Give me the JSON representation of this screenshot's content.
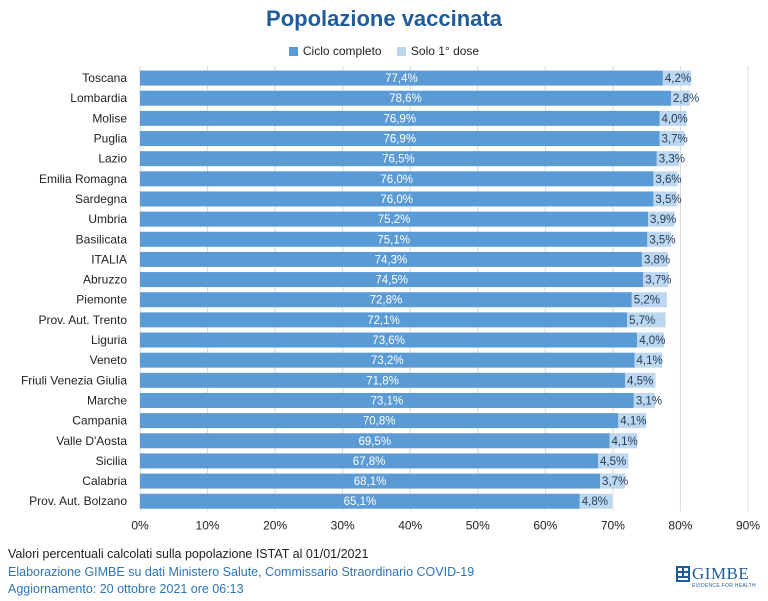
{
  "chart_data": {
    "type": "bar",
    "orientation": "horizontal",
    "stacked": true,
    "title": "Popolazione vaccinata",
    "xlim": [
      0,
      90
    ],
    "x_ticks": [
      "0%",
      "10%",
      "20%",
      "30%",
      "40%",
      "50%",
      "60%",
      "70%",
      "80%",
      "90%"
    ],
    "grid": "vertical",
    "legend_position": "top",
    "categories": [
      "Toscana",
      "Lombardia",
      "Molise",
      "Puglia",
      "Lazio",
      "Emilia Romagna",
      "Sardegna",
      "Umbria",
      "Basilicata",
      "ITALIA",
      "Abruzzo",
      "Piemonte",
      "Prov. Aut. Trento",
      "Liguria",
      "Veneto",
      "Friuli Venezia Giulia",
      "Marche",
      "Campania",
      "Valle D'Aosta",
      "Sicilia",
      "Calabria",
      "Prov. Aut. Bolzano"
    ],
    "series": [
      {
        "name": "Ciclo completo",
        "color": "#5b9bd5",
        "values": [
          77.4,
          78.6,
          76.9,
          76.9,
          76.5,
          76.0,
          76.0,
          75.2,
          75.1,
          74.3,
          74.5,
          72.8,
          72.1,
          73.6,
          73.2,
          71.8,
          73.1,
          70.8,
          69.5,
          67.8,
          68.1,
          65.1
        ],
        "labels": [
          "77,4%",
          "78,6%",
          "76,9%",
          "76,9%",
          "76,5%",
          "76,0%",
          "76,0%",
          "75,2%",
          "75,1%",
          "74,3%",
          "74,5%",
          "72,8%",
          "72,1%",
          "73,6%",
          "73,2%",
          "71,8%",
          "73,1%",
          "70,8%",
          "69,5%",
          "67,8%",
          "68,1%",
          "65,1%"
        ]
      },
      {
        "name": "Solo 1° dose",
        "color": "#bdd7ee",
        "values": [
          4.2,
          2.8,
          4.0,
          3.7,
          3.3,
          3.6,
          3.5,
          3.9,
          3.5,
          3.8,
          3.7,
          5.2,
          5.7,
          4.0,
          4.1,
          4.5,
          3.1,
          4.1,
          4.1,
          4.5,
          3.7,
          4.8
        ],
        "labels": [
          "4,2%",
          "2,8%",
          "4,0%",
          "3,7%",
          "3,3%",
          "3,6%",
          "3,5%",
          "3,9%",
          "3,5%",
          "3,8%",
          "3,7%",
          "5,2%",
          "5,7%",
          "4,0%",
          "4,1%",
          "4,5%",
          "3,1%",
          "4,1%",
          "4,1%",
          "4,5%",
          "3,7%",
          "4,8%"
        ]
      }
    ]
  },
  "footer": {
    "note": "Valori percentuali calcolati sulla popolazione ISTAT al 01/01/2021",
    "source": "Elaborazione GIMBE su dati Ministero Salute, Commissario Straordinario COVID-19",
    "update": "Aggiornamento: 20 ottobre 2021 ore 06:13"
  },
  "logo": {
    "name": "GIMBE",
    "tagline": "EVIDENCE FOR HEALTH",
    "color": "#1f5c99"
  }
}
